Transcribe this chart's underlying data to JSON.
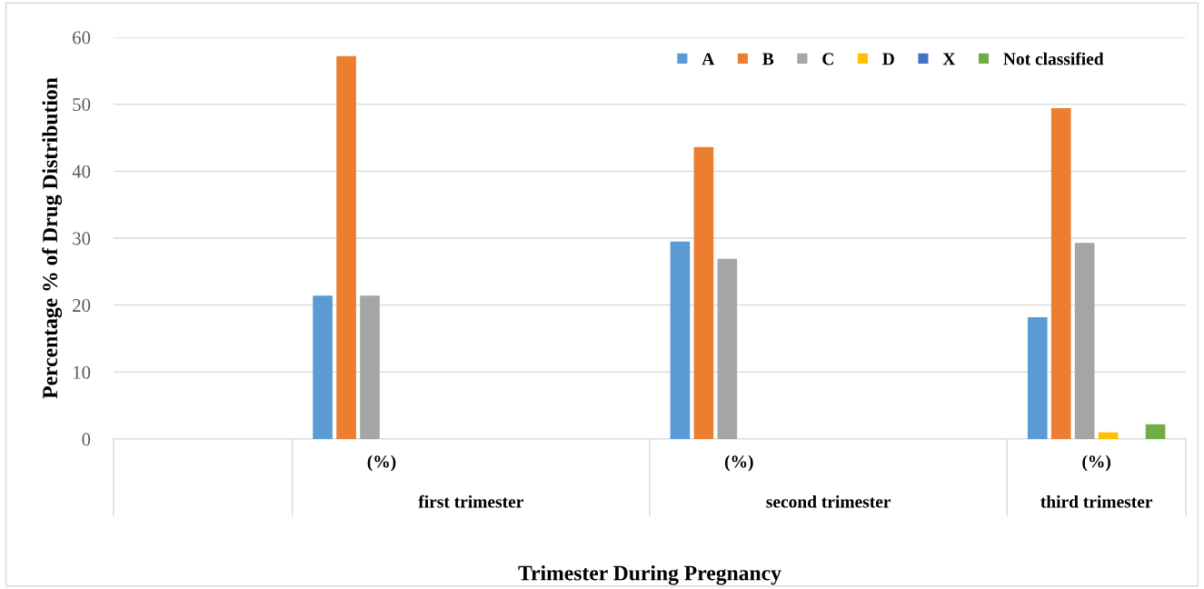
{
  "chart_data": {
    "type": "bar",
    "xlabel": "Trimester During Pregnancy",
    "ylabel": "Percentage % of Drug Distribution",
    "categories": [
      null,
      "(%)",
      null,
      "(%)",
      null,
      "(%)"
    ],
    "annotations": [
      "first trimester",
      "second trimester",
      "third trimester"
    ],
    "series": [
      {
        "name": "A",
        "color": "#5b9bd5",
        "values": [
          null,
          21.4,
          null,
          29.5,
          null,
          18.2
        ]
      },
      {
        "name": "B",
        "color": "#ed7d31",
        "values": [
          null,
          57.2,
          null,
          43.6,
          null,
          49.4
        ]
      },
      {
        "name": "C",
        "color": "#a5a5a5",
        "values": [
          null,
          21.4,
          null,
          26.9,
          null,
          29.3
        ]
      },
      {
        "name": "D",
        "color": "#ffc000",
        "values": [
          null,
          null,
          null,
          null,
          null,
          1.0
        ]
      },
      {
        "name": "X",
        "color": "#4472c4",
        "values": [
          null,
          null,
          null,
          null,
          null,
          null
        ]
      },
      {
        "name": "Not classified",
        "color": "#70ad47",
        "values": [
          null,
          null,
          null,
          null,
          null,
          2.2
        ]
      }
    ],
    "ylim": [
      0,
      60
    ],
    "yticks": [
      0,
      10,
      20,
      30,
      40,
      50,
      60
    ],
    "grid": "y",
    "legend": "top right"
  }
}
